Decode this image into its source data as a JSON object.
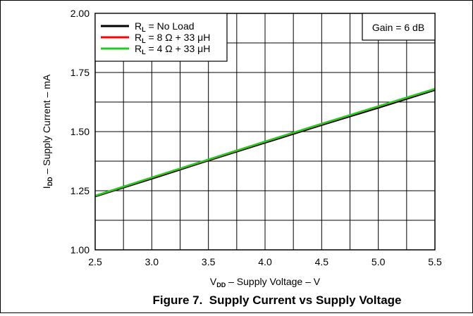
{
  "chart_data": {
    "type": "line",
    "title": "Figure 7.  Supply Current vs Supply Voltage",
    "xlabel": {
      "main": "V",
      "sub": "DD",
      "rest": " – Supply Voltage – V"
    },
    "ylabel": {
      "main": "I",
      "sub": "DD",
      "rest": " – Supply Current – mA"
    },
    "xlim": [
      2.5,
      5.5
    ],
    "ylim": [
      1.0,
      2.0
    ],
    "x_ticks": [
      "2.5",
      "3.0",
      "3.5",
      "4.0",
      "4.5",
      "5.0",
      "5.5"
    ],
    "y_ticks": [
      "1.00",
      "1.25",
      "1.50",
      "1.75",
      "2.00"
    ],
    "grid": true,
    "legend_position": "top-left",
    "annotation": "Gain = 6 dB",
    "series": [
      {
        "name": "R_L = No Load",
        "label_main": "R",
        "label_sub": "L",
        "label_rest": " = No Load",
        "color": "#000000",
        "x": [
          2.5,
          3.0,
          3.5,
          4.0,
          4.5,
          5.0,
          5.5
        ],
        "values": [
          1.225,
          1.3,
          1.377,
          1.452,
          1.527,
          1.6,
          1.675
        ]
      },
      {
        "name": "R_L = 8 Ω + 33 μH",
        "label_main": "R",
        "label_sub": "L",
        "label_rest": " = 8 Ω + 33 μH",
        "color": "#ff0000",
        "x": [
          2.5,
          3.0,
          3.5,
          4.0,
          4.5,
          5.0,
          5.5
        ],
        "values": [
          1.228,
          1.305,
          1.381,
          1.457,
          1.532,
          1.606,
          1.68
        ]
      },
      {
        "name": "R_L = 4 Ω + 33 μH",
        "label_main": "R",
        "label_sub": "L",
        "label_rest": " = 4 Ω + 33 μH",
        "color": "#22cc22",
        "x": [
          2.5,
          3.0,
          3.5,
          4.0,
          4.5,
          5.0,
          5.5
        ],
        "values": [
          1.229,
          1.306,
          1.382,
          1.458,
          1.533,
          1.607,
          1.681
        ]
      }
    ]
  }
}
